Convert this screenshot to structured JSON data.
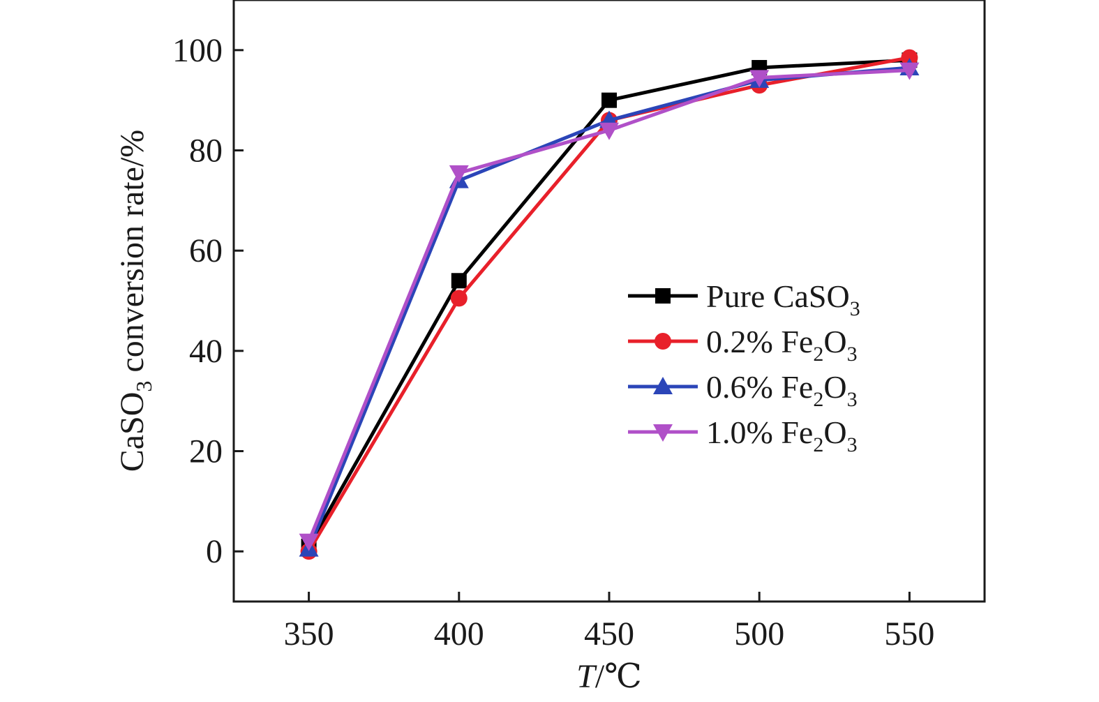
{
  "chart_data": {
    "type": "line",
    "x": [
      350,
      400,
      450,
      500,
      550
    ],
    "xlim": [
      325,
      575
    ],
    "ylim": [
      -10,
      110
    ],
    "xticks": [
      "350",
      "400",
      "450",
      "500",
      "550"
    ],
    "yticks": [
      "0",
      "20",
      "40",
      "60",
      "80",
      "100"
    ],
    "xlabel": {
      "main": "T",
      "rest": "/℃"
    },
    "ylabel": {
      "pre": "CaSO",
      "sub": "3",
      "post": " conversion rate/%"
    },
    "grid": false,
    "legend_position": "center-right",
    "series": [
      {
        "name": "Pure CaSO",
        "name_sub": "3",
        "color": "#000000",
        "marker": "square",
        "values": [
          1,
          54,
          90,
          96.5,
          98
        ]
      },
      {
        "name": "0.2% Fe",
        "name_sub": "2",
        "name_post": "O",
        "name_sub2": "3",
        "color": "#e8202a",
        "marker": "circle",
        "values": [
          0,
          50.5,
          86,
          93,
          98.5
        ]
      },
      {
        "name": "0.6% Fe",
        "name_sub": "2",
        "name_post": "O",
        "name_sub2": "3",
        "color": "#2b45b8",
        "marker": "triangle-up",
        "values": [
          0.5,
          74,
          86,
          94,
          96.5
        ]
      },
      {
        "name": "1.0% Fe",
        "name_sub": "2",
        "name_post": "O",
        "name_sub2": "3",
        "color": "#b050c8",
        "marker": "triangle-down",
        "values": [
          2,
          75.5,
          84,
          94.5,
          96
        ]
      }
    ]
  }
}
